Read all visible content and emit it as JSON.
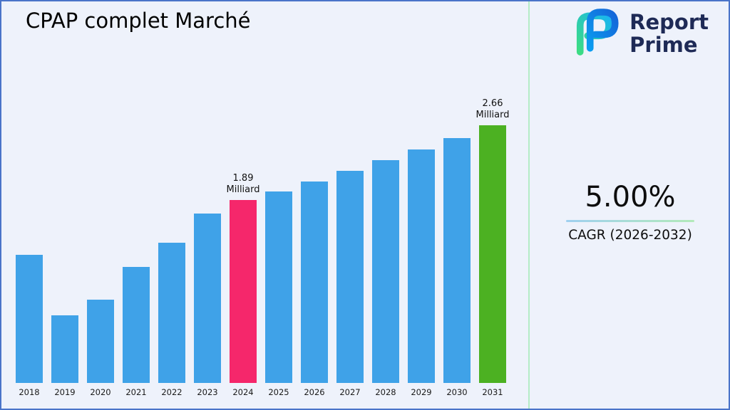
{
  "page": {
    "title": "CPAP complet Marché",
    "background": "#eef2fb",
    "border_color": "#4a74c9"
  },
  "logo": {
    "line1": "Report",
    "line2": "Prime",
    "text_color": "#1e2a56",
    "icon": "report-prime-monogram"
  },
  "stats": {
    "cagr_value": "5.00%",
    "cagr_label": "CAGR (2026-2032)"
  },
  "chart_data": {
    "type": "bar",
    "title": "CPAP complet Marché",
    "xlabel": "",
    "ylabel": "",
    "unit": "Milliard",
    "categories": [
      "2018",
      "2019",
      "2020",
      "2021",
      "2022",
      "2023",
      "2024",
      "2025",
      "2026",
      "2027",
      "2028",
      "2029",
      "2030",
      "2031"
    ],
    "values": [
      1.32,
      0.7,
      0.86,
      1.2,
      1.45,
      1.75,
      1.89,
      1.98,
      2.08,
      2.19,
      2.3,
      2.41,
      2.53,
      2.66
    ],
    "ylim": [
      0,
      3.0
    ],
    "grid": false,
    "legend": "none",
    "bar_color_default": "#3fa2e8",
    "colors": {
      "2024": "#f5276b",
      "2031": "#4cb122"
    },
    "annotations": {
      "2024": [
        "1.89",
        "Milliard"
      ],
      "2031": [
        "2.66",
        "Milliard"
      ]
    }
  }
}
